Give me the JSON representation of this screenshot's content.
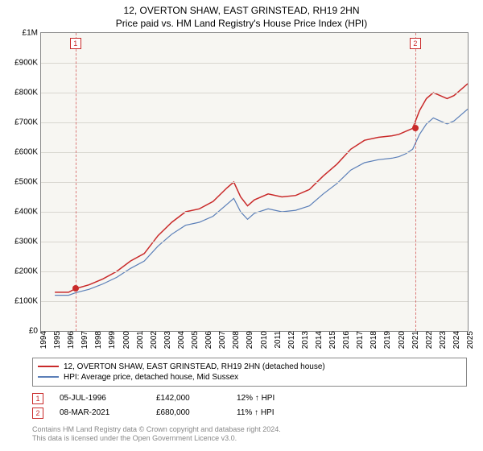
{
  "title_line1": "12, OVERTON SHAW, EAST GRINSTEAD, RH19 2HN",
  "title_line2": "Price paid vs. HM Land Registry's House Price Index (HPI)",
  "chart": {
    "type": "line",
    "background_color": "#f7f6f2",
    "grid_color": "#d8d6cf",
    "border_color": "#888888",
    "ylim": [
      0,
      1000000
    ],
    "ytick_step": 100000,
    "yticks": [
      "£0",
      "£100K",
      "£200K",
      "£300K",
      "£400K",
      "£500K",
      "£600K",
      "£700K",
      "£800K",
      "£900K",
      "£1M"
    ],
    "xlim": [
      1994,
      2025
    ],
    "xticks": [
      1994,
      1995,
      1996,
      1997,
      1998,
      1999,
      2000,
      2001,
      2002,
      2003,
      2004,
      2005,
      2006,
      2007,
      2008,
      2009,
      2010,
      2011,
      2012,
      2013,
      2014,
      2015,
      2016,
      2017,
      2018,
      2019,
      2020,
      2021,
      2022,
      2023,
      2024,
      2025
    ],
    "series": [
      {
        "label": "12, OVERTON SHAW, EAST GRINSTEAD, RH19 2HN (detached house)",
        "color": "#c92a2a",
        "line_width": 1.5,
        "points": [
          [
            1995.0,
            130000
          ],
          [
            1996.0,
            130000
          ],
          [
            1996.5,
            142000
          ],
          [
            1997.5,
            155000
          ],
          [
            1998.5,
            175000
          ],
          [
            1999.5,
            200000
          ],
          [
            2000.5,
            235000
          ],
          [
            2001.5,
            260000
          ],
          [
            2002.5,
            320000
          ],
          [
            2003.5,
            365000
          ],
          [
            2004.5,
            400000
          ],
          [
            2005.5,
            410000
          ],
          [
            2006.5,
            435000
          ],
          [
            2007.5,
            480000
          ],
          [
            2008.0,
            500000
          ],
          [
            2008.5,
            450000
          ],
          [
            2009.0,
            420000
          ],
          [
            2009.5,
            440000
          ],
          [
            2010.5,
            460000
          ],
          [
            2011.5,
            450000
          ],
          [
            2012.5,
            455000
          ],
          [
            2013.5,
            475000
          ],
          [
            2014.5,
            520000
          ],
          [
            2015.5,
            560000
          ],
          [
            2016.5,
            610000
          ],
          [
            2017.5,
            640000
          ],
          [
            2018.5,
            650000
          ],
          [
            2019.5,
            655000
          ],
          [
            2020.0,
            660000
          ],
          [
            2020.5,
            670000
          ],
          [
            2021.0,
            680000
          ],
          [
            2021.5,
            740000
          ],
          [
            2022.0,
            780000
          ],
          [
            2022.5,
            800000
          ],
          [
            2023.0,
            790000
          ],
          [
            2023.5,
            780000
          ],
          [
            2024.0,
            790000
          ],
          [
            2024.5,
            810000
          ],
          [
            2025.0,
            830000
          ]
        ]
      },
      {
        "label": "HPI: Average price, detached house, Mid Sussex",
        "color": "#5b7fb8",
        "line_width": 1.2,
        "points": [
          [
            1995.0,
            120000
          ],
          [
            1996.0,
            120000
          ],
          [
            1996.5,
            128000
          ],
          [
            1997.5,
            140000
          ],
          [
            1998.5,
            158000
          ],
          [
            1999.5,
            180000
          ],
          [
            2000.5,
            210000
          ],
          [
            2001.5,
            235000
          ],
          [
            2002.5,
            285000
          ],
          [
            2003.5,
            325000
          ],
          [
            2004.5,
            355000
          ],
          [
            2005.5,
            365000
          ],
          [
            2006.5,
            385000
          ],
          [
            2007.5,
            425000
          ],
          [
            2008.0,
            445000
          ],
          [
            2008.5,
            400000
          ],
          [
            2009.0,
            375000
          ],
          [
            2009.5,
            395000
          ],
          [
            2010.5,
            410000
          ],
          [
            2011.5,
            400000
          ],
          [
            2012.5,
            405000
          ],
          [
            2013.5,
            420000
          ],
          [
            2014.5,
            460000
          ],
          [
            2015.5,
            495000
          ],
          [
            2016.5,
            540000
          ],
          [
            2017.5,
            565000
          ],
          [
            2018.5,
            575000
          ],
          [
            2019.5,
            580000
          ],
          [
            2020.0,
            585000
          ],
          [
            2020.5,
            595000
          ],
          [
            2021.0,
            610000
          ],
          [
            2021.5,
            660000
          ],
          [
            2022.0,
            695000
          ],
          [
            2022.5,
            715000
          ],
          [
            2023.0,
            705000
          ],
          [
            2023.5,
            695000
          ],
          [
            2024.0,
            705000
          ],
          [
            2024.5,
            725000
          ],
          [
            2025.0,
            745000
          ]
        ]
      }
    ],
    "sale_markers": [
      {
        "idx": "1",
        "year": 1996.5,
        "price": 142000,
        "color": "#c92a2a"
      },
      {
        "idx": "2",
        "year": 2021.19,
        "price": 680000,
        "color": "#c92a2a"
      }
    ]
  },
  "legend": {
    "items": [
      {
        "color": "#c92a2a",
        "label": "12, OVERTON SHAW, EAST GRINSTEAD, RH19 2HN (detached house)"
      },
      {
        "color": "#5b7fb8",
        "label": "HPI: Average price, detached house, Mid Sussex"
      }
    ]
  },
  "sales_table": {
    "rows": [
      {
        "idx": "1",
        "date": "05-JUL-1996",
        "price": "£142,000",
        "delta": "12% ↑ HPI"
      },
      {
        "idx": "2",
        "date": "08-MAR-2021",
        "price": "£680,000",
        "delta": "11% ↑ HPI"
      }
    ]
  },
  "footnote_line1": "Contains HM Land Registry data © Crown copyright and database right 2024.",
  "footnote_line2": "This data is licensed under the Open Government Licence v3.0."
}
